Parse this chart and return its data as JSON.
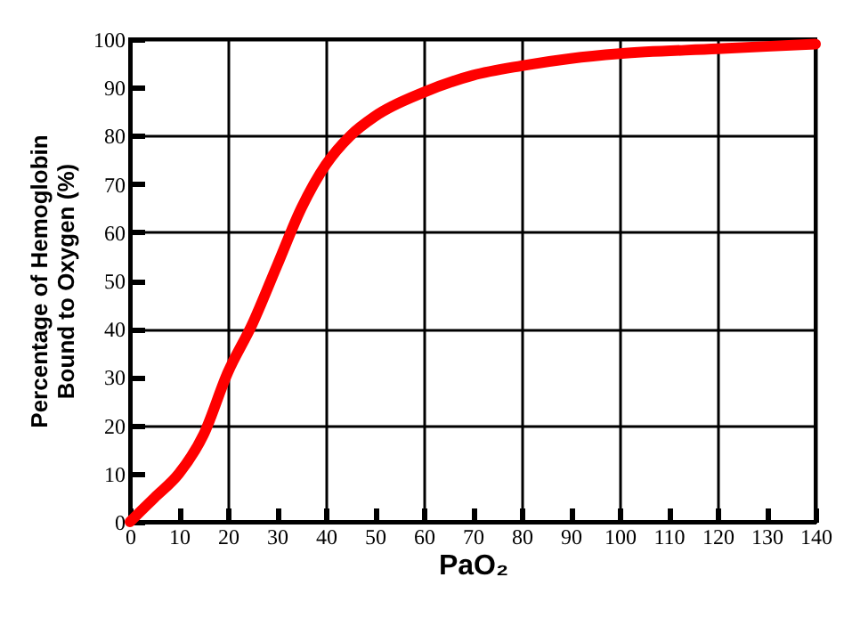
{
  "chart_data": {
    "type": "line",
    "xlabel": "PaO₂",
    "ylabel": "Percentage of Hemoglobin\nBound to Oxygen (%)",
    "x": [
      0,
      5,
      10,
      15,
      20,
      25,
      30,
      35,
      40,
      45,
      50,
      60,
      70,
      80,
      90,
      100,
      120,
      140
    ],
    "series": [
      {
        "color": "#ff0000",
        "values": [
          0,
          5,
          10,
          18,
          31,
          41,
          53,
          65,
          74,
          80,
          84,
          89,
          92.5,
          94.5,
          96,
          97,
          98,
          99
        ]
      }
    ],
    "xlim": [
      0,
      140
    ],
    "xticks": [
      0,
      10,
      20,
      30,
      40,
      50,
      60,
      70,
      80,
      90,
      100,
      110,
      120,
      130,
      140
    ],
    "ylim": [
      0,
      100
    ],
    "yticks": [
      0,
      10,
      20,
      30,
      40,
      50,
      60,
      70,
      80,
      90,
      100
    ],
    "grid": true,
    "marker": "none",
    "line_style": "solid",
    "legend": false
  }
}
